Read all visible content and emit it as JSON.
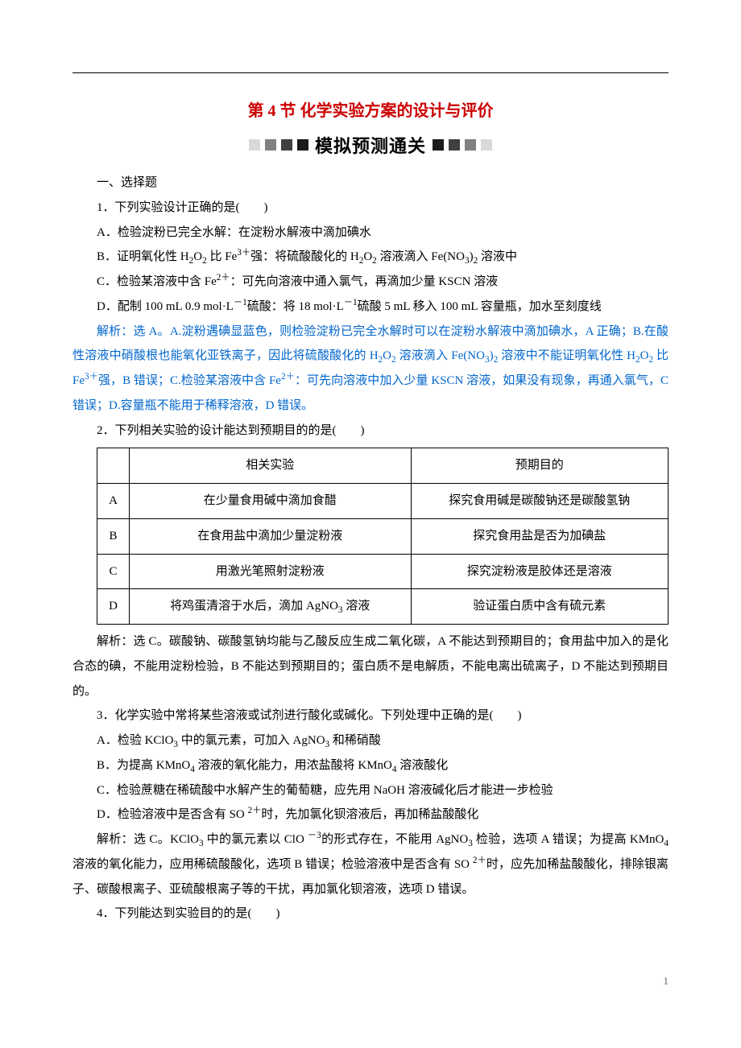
{
  "colors": {
    "title": "#cc0000",
    "analysis": "#0066cc",
    "text": "#000000",
    "sq_light": "#d9d9d9",
    "sq_mid": "#808080",
    "sq_dark": "#404040",
    "sq_black": "#1a1a1a"
  },
  "title": "第 4 节  化学实验方案的设计与评价",
  "subtitle": "模拟预测通关",
  "section_heading": "一、选择题",
  "q1": {
    "stem": "1．下列实验设计正确的是(　　)",
    "A": "A．检验淀粉已完全水解：在淀粉水解液中滴加碘水",
    "B_pre": "B．证明氧化性 H",
    "B_mid1": " 比 Fe",
    "B_mid2": "强：将硫酸酸化的 H",
    "B_mid3": " 溶液滴入 Fe(NO",
    "B_end": " 溶液中",
    "C_pre": "C．检验某溶液中含 Fe",
    "C_end": "：可先向溶液中通入氯气，再滴加少量 KSCN 溶液",
    "D_pre": "D．配制 100 mL 0.9 mol·L",
    "D_mid": "硫酸：将 18 mol·L",
    "D_end": "硫酸 5 mL 移入 100 mL 容量瓶，加水至刻度线",
    "ans_pre": "解析：选 A。A.淀粉遇碘显蓝色，则检验淀粉已完全水解时可以在淀粉水解液中滴加碘水，A 正确；B.在酸性溶液中硝酸根也能氧化亚铁离子，因此将硫酸酸化的 H",
    "ans_m1": " 溶液滴入 Fe(NO",
    "ans_m2": " 溶液中不能证明氧化性 H",
    "ans_m3": " 比 Fe",
    "ans_m4": "强，B 错误；C.检验某溶液中含 Fe",
    "ans_end": "：可先向溶液中加入少量 KSCN 溶液，如果没有现象，再通入氯气，C 错误；D.容量瓶不能用于稀释溶液，D 错误。"
  },
  "q2": {
    "stem": "2．下列相关实验的设计能达到预期目的的是(　　)",
    "header1": "相关实验",
    "header2": "预期目的",
    "rows": [
      {
        "k": "A",
        "exp": "在少量食用碱中滴加食醋",
        "goal": "探究食用碱是碳酸钠还是碳酸氢钠"
      },
      {
        "k": "B",
        "exp": "在食用盐中滴加少量淀粉液",
        "goal": "探究食用盐是否为加碘盐"
      },
      {
        "k": "C",
        "exp": "用激光笔照射淀粉液",
        "goal": "探究淀粉液是胶体还是溶液"
      },
      {
        "k": "D",
        "exp_pre": "将鸡蛋清溶于水后，滴加 AgNO",
        "exp_post": " 溶液",
        "goal": "验证蛋白质中含有硫元素"
      }
    ],
    "ans": "解析：选 C。碳酸钠、碳酸氢钠均能与乙酸反应生成二氧化碳，A 不能达到预期目的；食用盐中加入的是化合态的碘，不能用淀粉检验，B 不能达到预期目的；蛋白质不是电解质，不能电离出硫离子，D 不能达到预期目的。"
  },
  "q3": {
    "stem": "3．化学实验中常将某些溶液或试剂进行酸化或碱化。下列处理中正确的是(　　)",
    "A_pre": "A．检验 KClO",
    "A_mid": " 中的氯元素，可加入 AgNO",
    "A_end": " 和稀硝酸",
    "B_pre": "B．为提高 KMnO",
    "B_mid": " 溶液的氧化能力，用浓盐酸将  KMnO",
    "B_end": " 溶液酸化",
    "C": "C．检验蔗糖在稀硫酸中水解产生的葡萄糖，应先用 NaOH 溶液碱化后才能进一步检验",
    "D_pre": "D．检验溶液中是否含有 SO ",
    "D_end": "时，先加氯化钡溶液后，再加稀盐酸酸化",
    "ans_pre": "解析：选 C。KClO",
    "ans_m1": " 中的氯元素以 ClO ",
    "ans_m2": "的形式存在，不能用 AgNO",
    "ans_m3": " 检验，选项 A 错误；为提高 KMnO",
    "ans_m4": " 溶液的氧化能力，应用稀硫酸酸化，选项 B 错误；检验溶液中是否含有 SO ",
    "ans_end": "时，应先加稀盐酸酸化，排除银离子、碳酸根离子、亚硫酸根离子等的干扰，再加氯化钡溶液，选项 D 错误。"
  },
  "q4": {
    "stem": "4．下列能达到实验目的的是(　　)"
  },
  "page_num": "1"
}
